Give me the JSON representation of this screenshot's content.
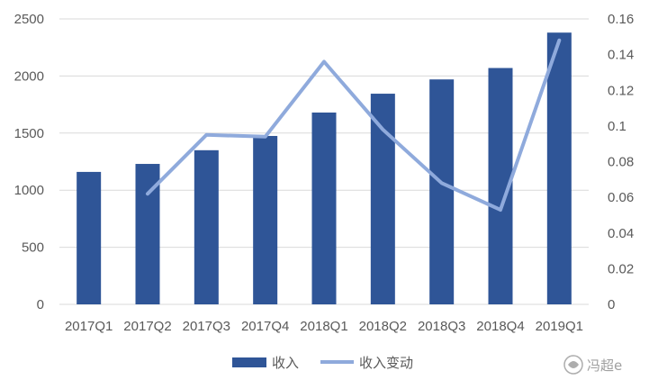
{
  "chart_data": {
    "type": "bar",
    "categories": [
      "2017Q1",
      "2017Q2",
      "2017Q3",
      "2017Q4",
      "2018Q1",
      "2018Q2",
      "2018Q3",
      "2018Q4",
      "2019Q1"
    ],
    "series": [
      {
        "name": "收入",
        "type": "bar",
        "axis": "left",
        "values": [
          1160,
          1230,
          1350,
          1475,
          1680,
          1845,
          1970,
          2070,
          2380
        ]
      },
      {
        "name": "收入变动",
        "type": "line",
        "axis": "right",
        "values": [
          null,
          0.062,
          0.095,
          0.094,
          0.136,
          0.098,
          0.068,
          0.053,
          0.148
        ]
      }
    ],
    "y_left": {
      "ylim": [
        0,
        2500
      ],
      "ticks": [
        "0",
        "500",
        "1000",
        "1500",
        "2000",
        "2500"
      ]
    },
    "y_right": {
      "ylim": [
        0,
        0.16
      ],
      "ticks": [
        "0",
        "0.02",
        "0.04",
        "0.06",
        "0.08",
        "0.1",
        "0.12",
        "0.14",
        "0.16"
      ]
    },
    "grid": true,
    "legend": "bottom",
    "colors": {
      "bar": "#2f5597",
      "line": "#8faadc",
      "grid": "#d9d9d9",
      "text": "#595959"
    }
  },
  "watermark": {
    "text": "冯超e"
  }
}
